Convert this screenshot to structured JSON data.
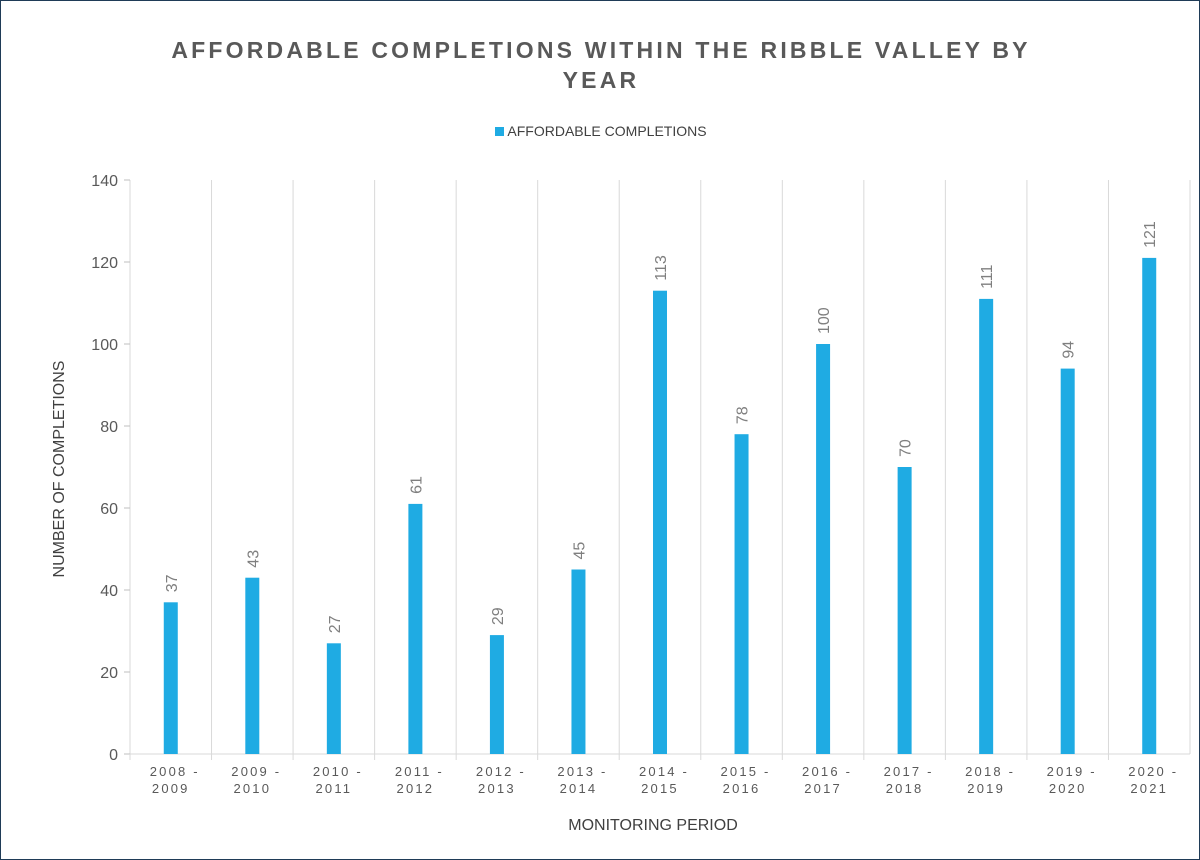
{
  "chart_data": {
    "type": "bar",
    "title": "AFFORDABLE COMPLETIONS WITHIN THE RIBBLE VALLEY BY YEAR",
    "xlabel": "MONITORING PERIOD",
    "ylabel": "NUMBER OF COMPLETIONS",
    "categories": [
      "2008 - 2009",
      "2009 - 2010",
      "2010 - 2011",
      "2011 - 2012",
      "2012 - 2013",
      "2013 - 2014",
      "2014 - 2015",
      "2015 - 2016",
      "2016 - 2017",
      "2017 - 2018",
      "2018 - 2019",
      "2019 - 2020",
      "2020 - 2021"
    ],
    "series": [
      {
        "name": "AFFORDABLE COMPLETIONS",
        "color": "#1fabe3",
        "values": [
          37,
          43,
          27,
          61,
          29,
          45,
          113,
          78,
          100,
          70,
          111,
          94,
          121
        ]
      }
    ],
    "ylim": [
      0,
      140
    ],
    "yticks": [
      0,
      20,
      40,
      60,
      80,
      100,
      120,
      140
    ],
    "grid": "vertical separators between categories",
    "legend": "top-center",
    "data_labels": "rotated vertical above bars"
  }
}
